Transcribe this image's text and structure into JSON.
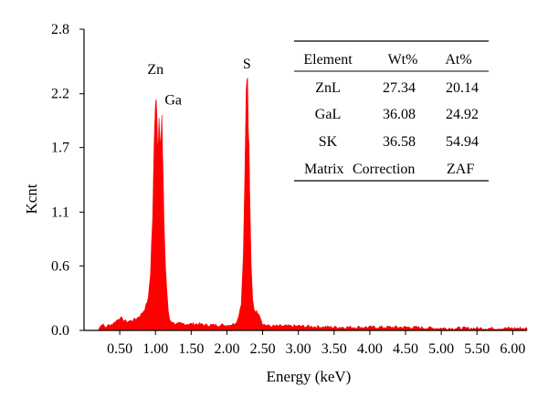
{
  "chart_data": {
    "type": "area",
    "title": "",
    "xlabel": "Energy (keV)",
    "ylabel": "Kcnt",
    "xlim": [
      0.0,
      6.2
    ],
    "ylim": [
      0.0,
      2.8
    ],
    "xticks": [
      0.5,
      1.0,
      1.5,
      2.0,
      2.5,
      3.0,
      3.5,
      4.0,
      4.5,
      5.0,
      5.5,
      6.0
    ],
    "xtick_labels": [
      "0.50",
      "1.00",
      "1.50",
      "2.00",
      "2.50",
      "3.00",
      "3.50",
      "4.00",
      "4.50",
      "5.00",
      "5.50",
      "6.00"
    ],
    "yticks": [
      0.0,
      0.6,
      1.1,
      1.7,
      2.2,
      2.8
    ],
    "ytick_labels": [
      "0.0",
      "0.6",
      "1.1",
      "1.7",
      "2.2",
      "2.8"
    ],
    "grid": false,
    "fill_color": "#ff0000",
    "series": [
      {
        "x": [
          0.15,
          0.2,
          0.25,
          0.3,
          0.35,
          0.4,
          0.45,
          0.5,
          0.55,
          0.6,
          0.65,
          0.7,
          0.75,
          0.8,
          0.85,
          0.9,
          0.93,
          0.96,
          0.98,
          1.0,
          1.01,
          1.02,
          1.03,
          1.04,
          1.05,
          1.06,
          1.07,
          1.08,
          1.09,
          1.1,
          1.11,
          1.12,
          1.14,
          1.16,
          1.18,
          1.2,
          1.25,
          1.3,
          1.4,
          1.5,
          1.6,
          1.7,
          1.8,
          1.9,
          2.0,
          2.1,
          2.15,
          2.2,
          2.23,
          2.25,
          2.27,
          2.28,
          2.29,
          2.3,
          2.31,
          2.32,
          2.34,
          2.36,
          2.38,
          2.4,
          2.45,
          2.5,
          2.55,
          2.6,
          2.8,
          3.0,
          3.5,
          4.0,
          4.5,
          5.0,
          5.5,
          6.0,
          6.2
        ],
        "y": [
          0.0,
          0.01,
          0.06,
          0.03,
          0.05,
          0.06,
          0.09,
          0.12,
          0.1,
          0.08,
          0.09,
          0.1,
          0.12,
          0.15,
          0.2,
          0.3,
          0.55,
          1.05,
          1.65,
          2.05,
          2.3,
          2.1,
          1.7,
          1.9,
          2.15,
          1.85,
          1.65,
          1.8,
          1.85,
          1.7,
          1.4,
          1.0,
          0.6,
          0.35,
          0.18,
          0.1,
          0.07,
          0.06,
          0.06,
          0.06,
          0.06,
          0.05,
          0.05,
          0.05,
          0.05,
          0.06,
          0.1,
          0.25,
          0.7,
          1.55,
          2.15,
          2.35,
          2.25,
          1.9,
          1.6,
          1.2,
          0.6,
          0.3,
          0.2,
          0.18,
          0.16,
          0.06,
          0.05,
          0.04,
          0.04,
          0.04,
          0.03,
          0.03,
          0.03,
          0.02,
          0.02,
          0.02,
          0.02
        ]
      }
    ],
    "annotations": [
      {
        "text": "Zn",
        "x": 1.0,
        "y": 2.3
      },
      {
        "text": "Ga",
        "x": 1.07,
        "y": 2.15
      },
      {
        "text": "S",
        "x": 2.28,
        "y": 2.35
      }
    ]
  },
  "table": {
    "headers": [
      "Element",
      "Wt%",
      "At%"
    ],
    "rows": [
      [
        "ZnL",
        "27.34",
        "20.14"
      ],
      [
        "GaL",
        "36.08",
        "24.92"
      ],
      [
        "SK",
        "36.58",
        "54.94"
      ]
    ],
    "footer": [
      "Matrix",
      "Correction",
      "ZAF"
    ]
  }
}
